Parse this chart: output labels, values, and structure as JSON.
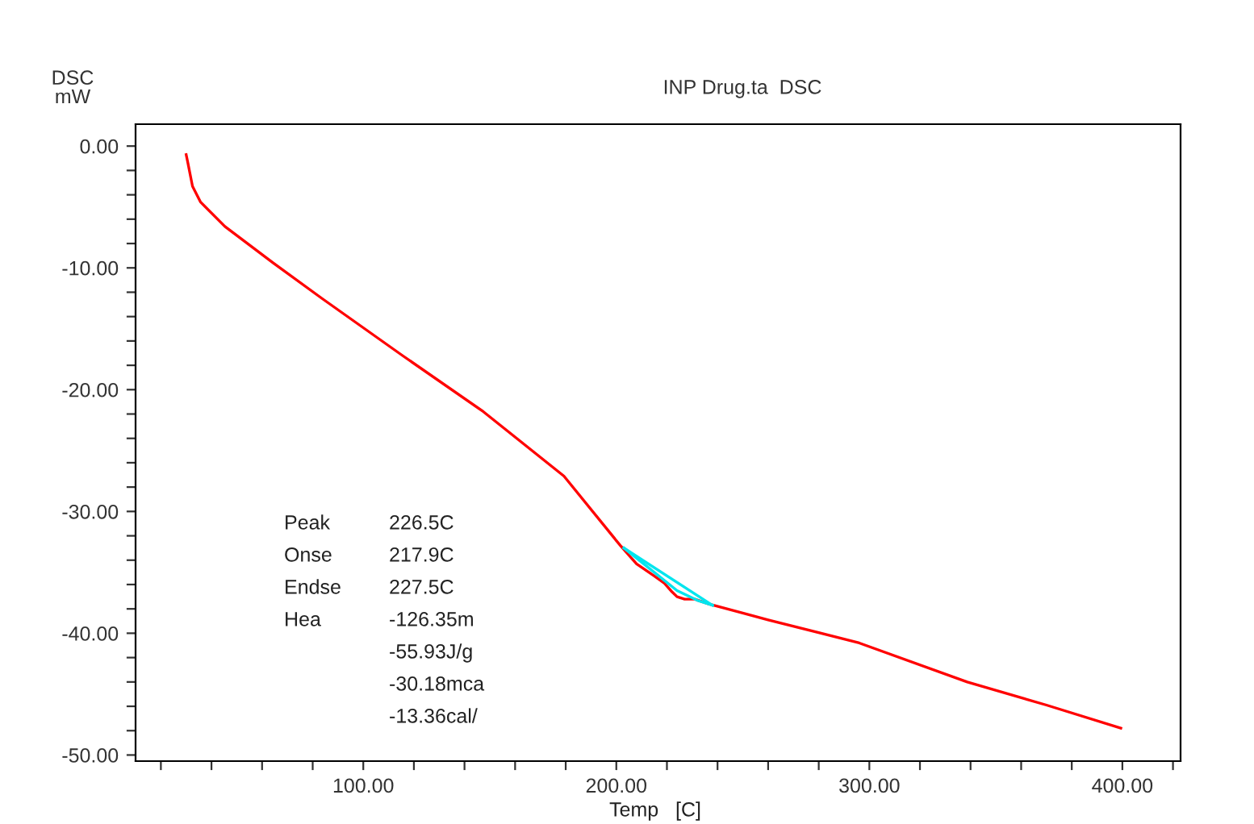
{
  "chart_data": {
    "type": "line",
    "title": "INP Drug.ta  DSC",
    "xlabel": "Temp   [C]",
    "ylabel": "DSC\nmW",
    "xlim": [
      10,
      423
    ],
    "ylim": [
      -50.5,
      1.8
    ],
    "xticks": [
      {
        "value": 20,
        "label": null
      },
      {
        "value": 40,
        "label": null
      },
      {
        "value": 60,
        "label": null
      },
      {
        "value": 80,
        "label": null
      },
      {
        "value": 100,
        "label": "100.00"
      },
      {
        "value": 120,
        "label": null
      },
      {
        "value": 140,
        "label": null
      },
      {
        "value": 160,
        "label": null
      },
      {
        "value": 180,
        "label": null
      },
      {
        "value": 200,
        "label": "200.00"
      },
      {
        "value": 220,
        "label": null
      },
      {
        "value": 240,
        "label": null
      },
      {
        "value": 260,
        "label": null
      },
      {
        "value": 280,
        "label": null
      },
      {
        "value": 300,
        "label": "300.00"
      },
      {
        "value": 320,
        "label": null
      },
      {
        "value": 340,
        "label": null
      },
      {
        "value": 360,
        "label": null
      },
      {
        "value": 380,
        "label": null
      },
      {
        "value": 400,
        "label": "400.00"
      },
      {
        "value": 420,
        "label": null
      }
    ],
    "yticks": [
      {
        "value": -50,
        "label": "-50.00"
      },
      {
        "value": -48,
        "label": null
      },
      {
        "value": -46,
        "label": null
      },
      {
        "value": -44,
        "label": null
      },
      {
        "value": -42,
        "label": null
      },
      {
        "value": -40,
        "label": "-40.00"
      },
      {
        "value": -38,
        "label": null
      },
      {
        "value": -36,
        "label": null
      },
      {
        "value": -34,
        "label": null
      },
      {
        "value": -32,
        "label": null
      },
      {
        "value": -30,
        "label": "-30.00"
      },
      {
        "value": -28,
        "label": null
      },
      {
        "value": -26,
        "label": null
      },
      {
        "value": -24,
        "label": null
      },
      {
        "value": -22,
        "label": null
      },
      {
        "value": -20,
        "label": "-20.00"
      },
      {
        "value": -18,
        "label": null
      },
      {
        "value": -16,
        "label": null
      },
      {
        "value": -14,
        "label": null
      },
      {
        "value": -12,
        "label": null
      },
      {
        "value": -10,
        "label": "-10.00"
      },
      {
        "value": -8,
        "label": null
      },
      {
        "value": -6,
        "label": null
      },
      {
        "value": -4,
        "label": null
      },
      {
        "value": -2,
        "label": null
      },
      {
        "value": 0,
        "label": "0.00"
      }
    ],
    "grid": false,
    "legend": false,
    "marker": "none",
    "line_style": "solid",
    "series": [
      {
        "color": "#ff0000",
        "x": [
          30,
          30.6,
          32.5,
          35.7,
          45.3,
          64.4,
          83.6,
          115.5,
          147.4,
          179.3,
          201.6,
          208,
          215,
          219,
          222,
          224,
          227,
          231,
          236.6,
          260,
          296,
          338.7,
          370,
          399.4
        ],
        "values": [
          -0.7,
          -1.3,
          -3.3,
          -4.6,
          -6.6,
          -9.6,
          -12.5,
          -17.2,
          -21.8,
          -27.1,
          -32.8,
          -34.3,
          -35.3,
          -35.9,
          -36.6,
          -37.0,
          -37.2,
          -37.2,
          -37.6,
          -38.9,
          -40.8,
          -44.0,
          -45.9,
          -47.8
        ]
      },
      {
        "color": "#00e5ee",
        "x": [
          203,
          238
        ],
        "values": [
          -33.0,
          -37.7
        ]
      },
      {
        "color": "#00e5ee",
        "x": [
          203,
          215,
          224,
          232,
          238
        ],
        "values": [
          -33.0,
          -35.0,
          -36.5,
          -37.3,
          -37.7
        ]
      }
    ],
    "annotations": [
      "Peak",
      "226.5C",
      "Onse",
      "217.9C",
      "Endse",
      "227.5C",
      "Hea",
      "-126.35m",
      "-55.93J/g",
      "-30.18mca",
      "-13.36cal/"
    ]
  }
}
